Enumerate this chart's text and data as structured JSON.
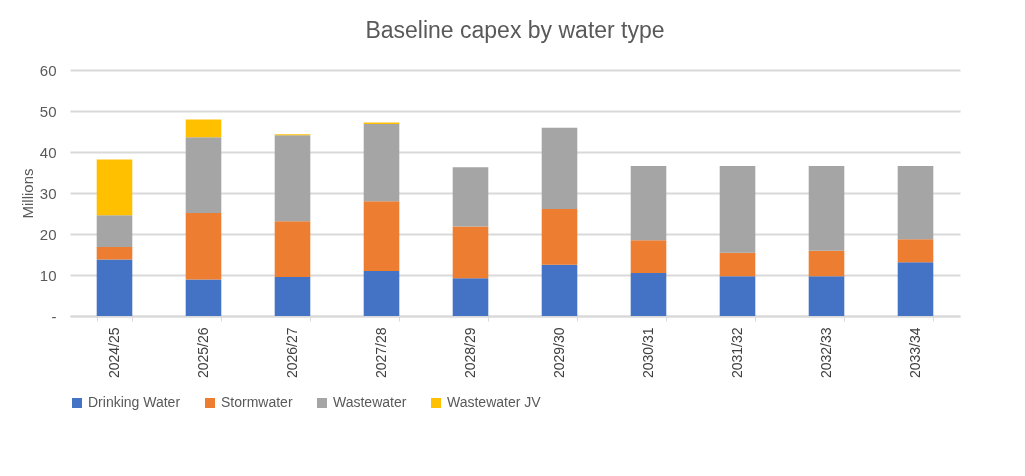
{
  "chart_data": {
    "type": "bar",
    "stacked": true,
    "title": "Baseline capex by water type",
    "ylabel": "Millions",
    "categories": [
      "2024/25",
      "2025/26",
      "2026/27",
      "2027/28",
      "2028/29",
      "2029/30",
      "2030/31",
      "2031/32",
      "2032/33",
      "2033/34"
    ],
    "series": [
      {
        "name": "Drinking Water",
        "color": "#4472c4",
        "values": [
          13.8,
          8.9,
          9.5,
          11.0,
          9.2,
          12.5,
          10.5,
          9.7,
          9.7,
          13.1
        ]
      },
      {
        "name": "Stormwater",
        "color": "#ed7d31",
        "values": [
          3.0,
          16.2,
          13.6,
          17.0,
          12.6,
          13.6,
          8.0,
          5.7,
          6.2,
          5.6
        ]
      },
      {
        "name": "Wastewater",
        "color": "#a5a5a5",
        "values": [
          7.8,
          18.5,
          21.0,
          18.8,
          14.5,
          19.8,
          18.1,
          21.2,
          20.7,
          17.9
        ]
      },
      {
        "name": "Wastewater JV",
        "color": "#ffc000",
        "values": [
          13.6,
          4.3,
          0.2,
          0.4,
          null,
          null,
          null,
          null,
          null,
          null
        ]
      }
    ],
    "ylim": [
      0,
      60
    ],
    "yticks": [
      {
        "value": 0,
        "label": "-"
      },
      10,
      20,
      30,
      40,
      50,
      60
    ],
    "grid": "y",
    "legend": "bottom"
  }
}
